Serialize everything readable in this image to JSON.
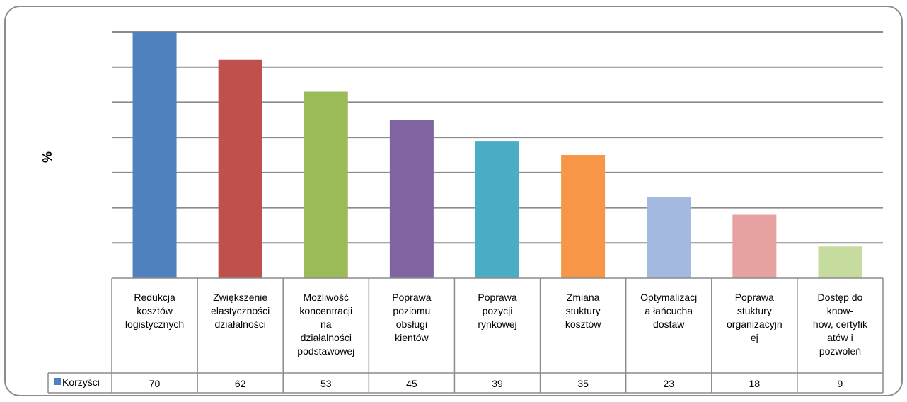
{
  "chart_data": {
    "type": "bar",
    "ylabel": "%",
    "ylim": [
      0,
      70
    ],
    "grid": true,
    "categories": [
      "Redukcja kosztów logistycznych",
      "Zwiększenie elastyczności działalności",
      "Możliwość koncentracji na działalności podstawowej",
      "Poprawa poziomu obsługi kientów",
      "Poprawa pozycji rynkowej",
      "Zmiana stuktury kosztów",
      "Optymalizacja łańcucha dostaw",
      "Poprawa stuktury organizacyjnej",
      "Dostęp do know-how, certyfikatów i pozwoleń"
    ],
    "category_lines": [
      [
        "Redukcja",
        "kosztów",
        "logistycznych"
      ],
      [
        "Zwiększenie",
        "elastyczności",
        "działalności"
      ],
      [
        "Możliwość",
        "koncentracji",
        "na",
        "działalności",
        "podstawowej"
      ],
      [
        "Poprawa",
        "poziomu",
        "obsługi",
        "kientów"
      ],
      [
        "Poprawa",
        "pozycji",
        "rynkowej"
      ],
      [
        "Zmiana",
        "stuktury",
        "kosztów"
      ],
      [
        "Optymalizacj",
        "a łańcucha",
        "dostaw"
      ],
      [
        "Poprawa",
        "stuktury",
        "organizacyjn",
        "ej"
      ],
      [
        "Dostęp do",
        "know-",
        "how, certyfik",
        "atów i",
        "pozwoleń"
      ]
    ],
    "series": [
      {
        "name": "Korzyści",
        "values": [
          70,
          62,
          53,
          45,
          39,
          35,
          23,
          18,
          9
        ],
        "colors": [
          "#4f81bd",
          "#c0504d",
          "#9bbb59",
          "#8064a2",
          "#4bacc6",
          "#f79646",
          "#a4b9e0",
          "#e6a1a0",
          "#c6dc9f"
        ]
      }
    ],
    "legend": "data-table"
  }
}
